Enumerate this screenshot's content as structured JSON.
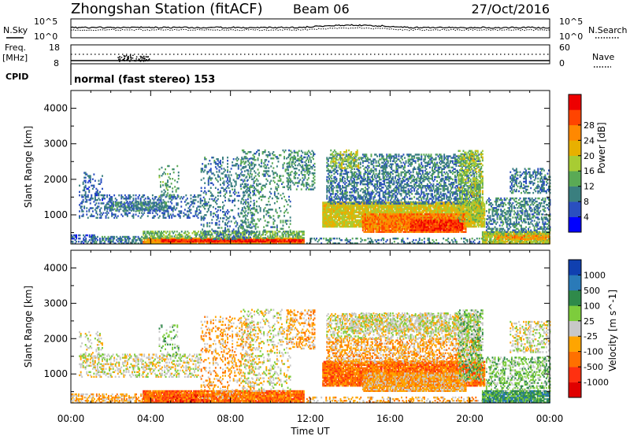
{
  "header": {
    "station": "Zhongshan Station (fitACF)",
    "beam": "Beam 06",
    "date": "27/Oct/2016"
  },
  "noise_panel": {
    "left_label": "N.Sky",
    "right_label": "N.Search",
    "tick_top": "10^5",
    "tick_bottom": "10^0"
  },
  "freq_panel": {
    "left_label_line1": "Freq.",
    "left_label_line2": "[MHz]",
    "left_ticks": [
      "18",
      "8"
    ],
    "right_ticks": [
      "60",
      "0"
    ],
    "right_label": "Nave"
  },
  "cpid_panel": {
    "label": "CPID",
    "text": "normal (fast stereo) 153"
  },
  "time_axis": {
    "label": "Time UT",
    "ticks": [
      "00:00",
      "04:00",
      "08:00",
      "12:00",
      "16:00",
      "20:00",
      "00:00"
    ]
  },
  "chart_data": [
    {
      "type": "heatmap",
      "name": "power",
      "xlabel": "Time UT",
      "ylabel": "Slant Range [km]",
      "xlim": [
        0,
        24
      ],
      "ylim": [
        180,
        4500
      ],
      "yticks": [
        "1000",
        "2000",
        "3000",
        "4000"
      ],
      "colorbar": {
        "label": "Power [dB]",
        "ticks": [
          "4",
          "8",
          "12",
          "16",
          "20",
          "24",
          "28"
        ],
        "range": [
          0,
          32
        ],
        "colors": [
          "#0000ff",
          "#2a4fbf",
          "#3a7f7f",
          "#5aaa55",
          "#a8cc33",
          "#e8b000",
          "#ff8800",
          "#ff4400",
          "#ee0000"
        ]
      },
      "regions": [
        {
          "t": [
            0.0,
            1.2
          ],
          "r": [
            180,
            420
          ],
          "v": 6,
          "d": 0.5
        },
        {
          "t": [
            1.0,
            3.6
          ],
          "r": [
            180,
            400
          ],
          "v": 8,
          "d": 0.55
        },
        {
          "t": [
            3.6,
            11.7
          ],
          "r": [
            180,
            330
          ],
          "v": 22,
          "d": 0.97
        },
        {
          "t": [
            4.5,
            11.7
          ],
          "r": [
            230,
            300
          ],
          "v": 29,
          "d": 0.93
        },
        {
          "t": [
            3.6,
            11.7
          ],
          "r": [
            330,
            520
          ],
          "v": 13,
          "d": 0.6
        },
        {
          "t": [
            0.4,
            6.5
          ],
          "r": [
            900,
            1550
          ],
          "v": 7,
          "d": 0.3
        },
        {
          "t": [
            1.8,
            4.8
          ],
          "r": [
            1100,
            1350
          ],
          "v": 9,
          "d": 0.55
        },
        {
          "t": [
            0.4,
            1.6
          ],
          "r": [
            1400,
            2200
          ],
          "v": 7,
          "d": 0.22
        },
        {
          "t": [
            4.4,
            5.4
          ],
          "r": [
            1500,
            2400
          ],
          "v": 11,
          "d": 0.2
        },
        {
          "t": [
            6.5,
            9.2
          ],
          "r": [
            300,
            2600
          ],
          "v": 8,
          "d": 0.22
        },
        {
          "t": [
            8.5,
            11.0
          ],
          "r": [
            500,
            2800
          ],
          "v": 10,
          "d": 0.2
        },
        {
          "t": [
            10.8,
            12.2
          ],
          "r": [
            1700,
            2800
          ],
          "v": 10,
          "d": 0.35
        },
        {
          "t": [
            11.8,
            20.7
          ],
          "r": [
            180,
            320
          ],
          "v": 9,
          "d": 0.28
        },
        {
          "t": [
            12.6,
            20.7
          ],
          "r": [
            650,
            1350
          ],
          "v": 18,
          "d": 0.92
        },
        {
          "t": [
            14.6,
            19.8
          ],
          "r": [
            500,
            1000
          ],
          "v": 24,
          "d": 0.9
        },
        {
          "t": [
            17.0,
            19.6
          ],
          "r": [
            550,
            850
          ],
          "v": 28,
          "d": 0.85
        },
        {
          "t": [
            12.8,
            20.5
          ],
          "r": [
            1300,
            2000
          ],
          "v": 8,
          "d": 0.5
        },
        {
          "t": [
            12.8,
            20.5
          ],
          "r": [
            2000,
            2700
          ],
          "v": 9,
          "d": 0.45
        },
        {
          "t": [
            13.0,
            14.5
          ],
          "r": [
            2300,
            2800
          ],
          "v": 16,
          "d": 0.35
        },
        {
          "t": [
            19.4,
            20.6
          ],
          "r": [
            800,
            2800
          ],
          "v": 15,
          "d": 0.5
        },
        {
          "t": [
            20.6,
            24.0
          ],
          "r": [
            180,
            500
          ],
          "v": 16,
          "d": 0.9
        },
        {
          "t": [
            21.2,
            24.0
          ],
          "r": [
            300,
            420
          ],
          "v": 23,
          "d": 0.55
        },
        {
          "t": [
            20.8,
            24.0
          ],
          "r": [
            500,
            1450
          ],
          "v": 9,
          "d": 0.42
        },
        {
          "t": [
            22.0,
            24.0
          ],
          "r": [
            1600,
            2300
          ],
          "v": 8,
          "d": 0.35
        }
      ]
    },
    {
      "type": "heatmap",
      "name": "velocity",
      "xlabel": "Time UT",
      "ylabel": "Slant Range [km]",
      "xlim": [
        0,
        24
      ],
      "ylim": [
        180,
        4500
      ],
      "yticks": [
        "1000",
        "2000",
        "3000",
        "4000"
      ],
      "colorbar": {
        "label": "Velocity [m s^-1]",
        "ticks": [
          "1000",
          "500",
          "100",
          "25",
          "-25",
          "-100",
          "-500",
          "-1000"
        ],
        "colors": [
          "#1040b0",
          "#2a7ab8",
          "#2f8a4a",
          "#7dcc3c",
          "#c8c8c8",
          "#ffa500",
          "#ff7000",
          "#ff3010",
          "#e00000"
        ]
      },
      "regions": [
        {
          "t": [
            0.0,
            3.6
          ],
          "r": [
            180,
            420
          ],
          "v": 5,
          "d": 0.5
        },
        {
          "t": [
            3.6,
            11.7
          ],
          "r": [
            180,
            520
          ],
          "v": 6,
          "d": 0.95
        },
        {
          "t": [
            4.8,
            7.0
          ],
          "r": [
            200,
            400
          ],
          "v": 7,
          "d": 0.4
        },
        {
          "t": [
            0.4,
            6.5
          ],
          "r": [
            900,
            1550
          ],
          "v": 4,
          "d": 0.35
        },
        {
          "t": [
            0.4,
            1.6
          ],
          "r": [
            1400,
            2200
          ],
          "v": 4,
          "d": 0.22
        },
        {
          "t": [
            4.4,
            5.4
          ],
          "r": [
            1500,
            2400
          ],
          "v": 3,
          "d": 0.2
        },
        {
          "t": [
            6.5,
            9.2
          ],
          "r": [
            300,
            2600
          ],
          "v": 5,
          "d": 0.22
        },
        {
          "t": [
            8.5,
            11.0
          ],
          "r": [
            500,
            2800
          ],
          "v": 4,
          "d": 0.22
        },
        {
          "t": [
            10.8,
            12.2
          ],
          "r": [
            1700,
            2800
          ],
          "v": 5,
          "d": 0.35
        },
        {
          "t": [
            11.8,
            20.7
          ],
          "r": [
            180,
            320
          ],
          "v": 5,
          "d": 0.3
        },
        {
          "t": [
            12.6,
            20.7
          ],
          "r": [
            650,
            1350
          ],
          "v": 6,
          "d": 0.93
        },
        {
          "t": [
            14.6,
            19.8
          ],
          "r": [
            500,
            1000
          ],
          "v": 5,
          "d": 0.9
        },
        {
          "t": [
            12.8,
            20.5
          ],
          "r": [
            1300,
            2000
          ],
          "v": 5,
          "d": 0.5
        },
        {
          "t": [
            12.8,
            20.5
          ],
          "r": [
            2000,
            2700
          ],
          "v": 4,
          "d": 0.45
        },
        {
          "t": [
            14.0,
            19.5
          ],
          "r": [
            2200,
            2700
          ],
          "v": 4,
          "d": 0.4
        },
        {
          "t": [
            19.4,
            20.6
          ],
          "r": [
            800,
            2800
          ],
          "v": 3,
          "d": 0.45
        },
        {
          "t": [
            20.6,
            24.0
          ],
          "r": [
            180,
            500
          ],
          "v": 2,
          "d": 0.85
        },
        {
          "t": [
            20.8,
            24.0
          ],
          "r": [
            500,
            1450
          ],
          "v": 3,
          "d": 0.4
        },
        {
          "t": [
            22.0,
            24.0
          ],
          "r": [
            1600,
            2500
          ],
          "v": 4,
          "d": 0.35
        }
      ]
    }
  ]
}
